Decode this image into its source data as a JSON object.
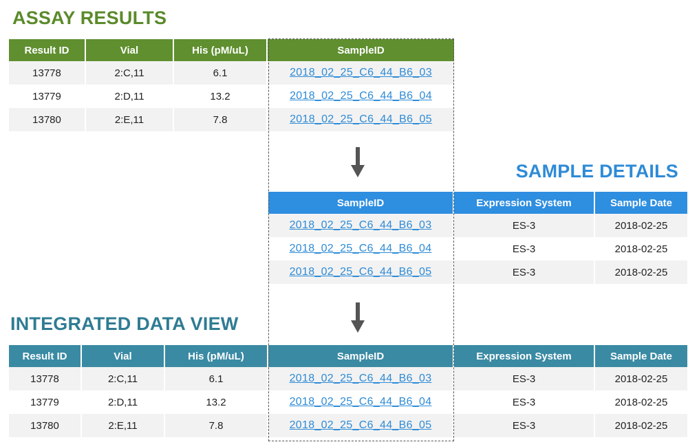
{
  "assay_results": {
    "title": "ASSAY RESULTS",
    "headers": [
      "Result ID",
      "Vial",
      "His (pM/uL)",
      "SampleID"
    ],
    "rows": [
      [
        "13778",
        "2:C,11",
        "6.1",
        "2018_02_25_C6_44_B6_03"
      ],
      [
        "13779",
        "2:D,11",
        "13.2",
        "2018_02_25_C6_44_B6_04"
      ],
      [
        "13780",
        "2:E,11",
        "7.8",
        "2018_02_25_C6_44_B6_05"
      ]
    ]
  },
  "sample_details": {
    "title": "SAMPLE DETAILS",
    "headers": [
      "SampleID",
      "Expression System",
      "Sample Date"
    ],
    "rows": [
      [
        "2018_02_25_C6_44_B6_03",
        "ES-3",
        "2018-02-25"
      ],
      [
        "2018_02_25_C6_44_B6_04",
        "ES-3",
        "2018-02-25"
      ],
      [
        "2018_02_25_C6_44_B6_05",
        "ES-3",
        "2018-02-25"
      ]
    ]
  },
  "integrated_view": {
    "title": "INTEGRATED DATA VIEW",
    "headers": [
      "Result ID",
      "Vial",
      "His (pM/uL)",
      "SampleID",
      "Expression System",
      "Sample Date"
    ],
    "rows": [
      [
        "13778",
        "2:C,11",
        "6.1",
        "2018_02_25_C6_44_B6_03",
        "ES-3",
        "2018-02-25"
      ],
      [
        "13779",
        "2:D,11",
        "13.2",
        "2018_02_25_C6_44_B6_04",
        "ES-3",
        "2018-02-25"
      ],
      [
        "13780",
        "2:E,11",
        "7.8",
        "2018_02_25_C6_44_B6_05",
        "ES-3",
        "2018-02-25"
      ]
    ]
  },
  "colors": {
    "assay_header": "#5f8f2f",
    "assay_title": "#5a8a2a",
    "sample_header": "#2e8ee0",
    "sample_title": "#2e8bd6",
    "integrated_header": "#3a8aa3",
    "integrated_title": "#2f7c93",
    "link": "#2e8bd6",
    "arrow": "#555555"
  },
  "icons": {
    "flow_arrow_1": "arrow-down-icon",
    "flow_arrow_2": "arrow-down-icon"
  }
}
